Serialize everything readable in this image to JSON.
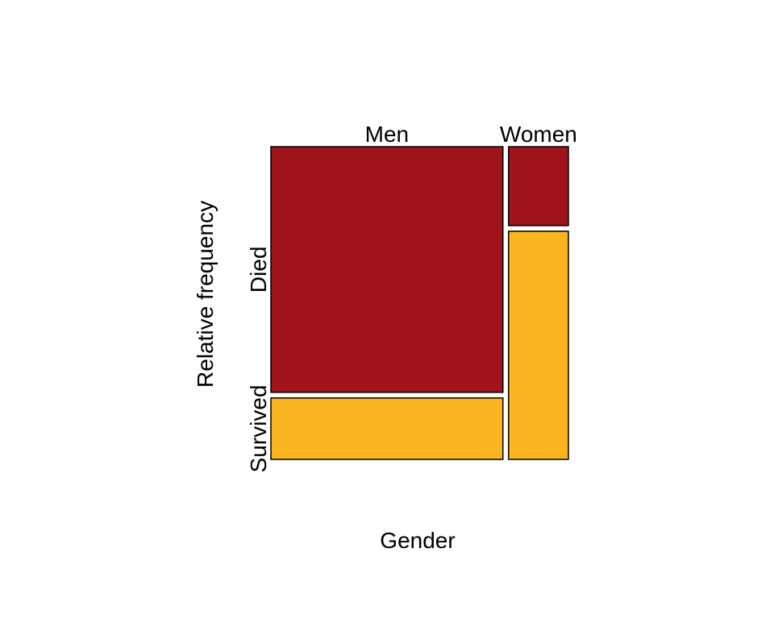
{
  "chart_data": {
    "type": "mosaic",
    "xlabel": "Gender",
    "ylabel": "Relative frequency",
    "categories": [
      "Men",
      "Women"
    ],
    "category_shares": [
      0.795,
      0.205
    ],
    "series": [
      {
        "name": "Died",
        "color": "#a0141c",
        "values": [
          0.8,
          0.257
        ]
      },
      {
        "name": "Survived",
        "color": "#fbb521",
        "values": [
          0.2,
          0.743
        ]
      }
    ]
  }
}
